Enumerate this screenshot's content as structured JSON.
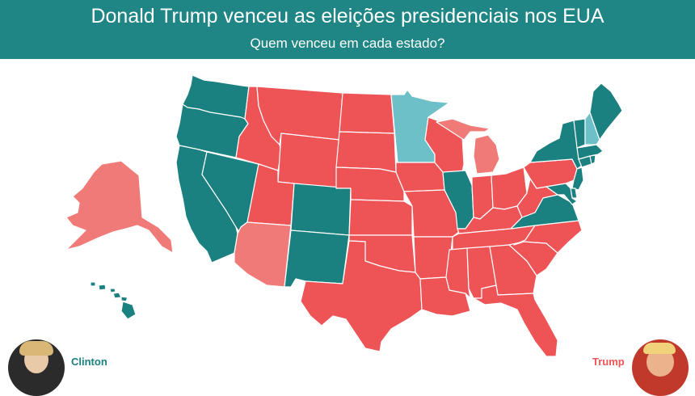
{
  "header": {
    "title": "Donald Trump venceu as eleições presidenciais nos EUA",
    "subtitle": "Quem venceu em cada estado?"
  },
  "colors": {
    "header_bg": "#1f8585",
    "clinton": "#1b8080",
    "clinton_light": "#6dbfc8",
    "trump": "#ee5356",
    "trump_light": "#f07a78"
  },
  "legend": {
    "clinton_label": "Clinton",
    "trump_label": "Trump"
  },
  "states": [
    {
      "code": "WA",
      "party": "clinton"
    },
    {
      "code": "OR",
      "party": "clinton"
    },
    {
      "code": "CA",
      "party": "clinton"
    },
    {
      "code": "NV",
      "party": "clinton"
    },
    {
      "code": "ID",
      "party": "trump"
    },
    {
      "code": "MT",
      "party": "trump"
    },
    {
      "code": "WY",
      "party": "trump"
    },
    {
      "code": "UT",
      "party": "trump"
    },
    {
      "code": "AZ",
      "party": "trump_light"
    },
    {
      "code": "CO",
      "party": "clinton"
    },
    {
      "code": "NM",
      "party": "clinton"
    },
    {
      "code": "ND",
      "party": "trump"
    },
    {
      "code": "SD",
      "party": "trump"
    },
    {
      "code": "NE",
      "party": "trump"
    },
    {
      "code": "KS",
      "party": "trump"
    },
    {
      "code": "OK",
      "party": "trump"
    },
    {
      "code": "TX",
      "party": "trump"
    },
    {
      "code": "MN",
      "party": "clinton_light"
    },
    {
      "code": "IA",
      "party": "trump"
    },
    {
      "code": "MO",
      "party": "trump"
    },
    {
      "code": "AR",
      "party": "trump"
    },
    {
      "code": "LA",
      "party": "trump"
    },
    {
      "code": "WI",
      "party": "trump"
    },
    {
      "code": "IL",
      "party": "clinton"
    },
    {
      "code": "MI",
      "party": "trump_light"
    },
    {
      "code": "IN",
      "party": "trump"
    },
    {
      "code": "OH",
      "party": "trump"
    },
    {
      "code": "KY",
      "party": "trump"
    },
    {
      "code": "TN",
      "party": "trump"
    },
    {
      "code": "MS",
      "party": "trump"
    },
    {
      "code": "AL",
      "party": "trump"
    },
    {
      "code": "GA",
      "party": "trump"
    },
    {
      "code": "FL",
      "party": "trump"
    },
    {
      "code": "SC",
      "party": "trump"
    },
    {
      "code": "NC",
      "party": "trump"
    },
    {
      "code": "VA",
      "party": "clinton"
    },
    {
      "code": "WV",
      "party": "trump"
    },
    {
      "code": "PA",
      "party": "trump"
    },
    {
      "code": "NY",
      "party": "clinton"
    },
    {
      "code": "NJ",
      "party": "clinton"
    },
    {
      "code": "DE",
      "party": "clinton"
    },
    {
      "code": "MD",
      "party": "clinton"
    },
    {
      "code": "CT",
      "party": "clinton"
    },
    {
      "code": "RI",
      "party": "clinton"
    },
    {
      "code": "MA",
      "party": "clinton"
    },
    {
      "code": "VT",
      "party": "clinton"
    },
    {
      "code": "NH",
      "party": "clinton_light"
    },
    {
      "code": "ME",
      "party": "clinton"
    },
    {
      "code": "AK",
      "party": "trump_light"
    },
    {
      "code": "HI",
      "party": "clinton"
    }
  ]
}
